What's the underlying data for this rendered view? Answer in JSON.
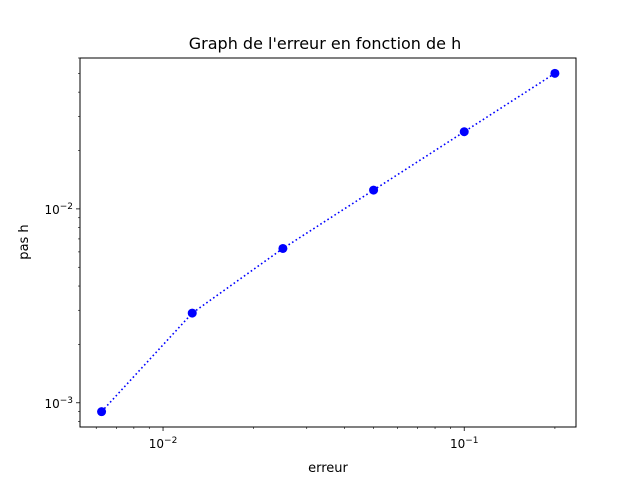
{
  "chart_data": {
    "type": "line",
    "title": "Graph de l'erreur en fonction de h",
    "xlabel": "erreur",
    "ylabel": "pas h",
    "xscale": "log",
    "yscale": "log",
    "xlim": [
      0.0053,
      0.235
    ],
    "ylim": [
      0.00075,
      0.06
    ],
    "xticks": [
      {
        "value": 0.01,
        "base": "10",
        "exp": "−2"
      },
      {
        "value": 0.1,
        "base": "10",
        "exp": "−1"
      }
    ],
    "yticks": [
      {
        "value": 0.001,
        "base": "10",
        "exp": "−3"
      },
      {
        "value": 0.01,
        "base": "10",
        "exp": "−2"
      }
    ],
    "grid": false,
    "series": [
      {
        "color": "#0000ff",
        "linestyle": "dotted",
        "marker": "circle",
        "x": [
          0.00625,
          0.0125,
          0.025,
          0.05,
          0.1,
          0.2
        ],
        "y": [
          0.0009,
          0.0029,
          0.00625,
          0.0125,
          0.025,
          0.05
        ]
      }
    ]
  }
}
